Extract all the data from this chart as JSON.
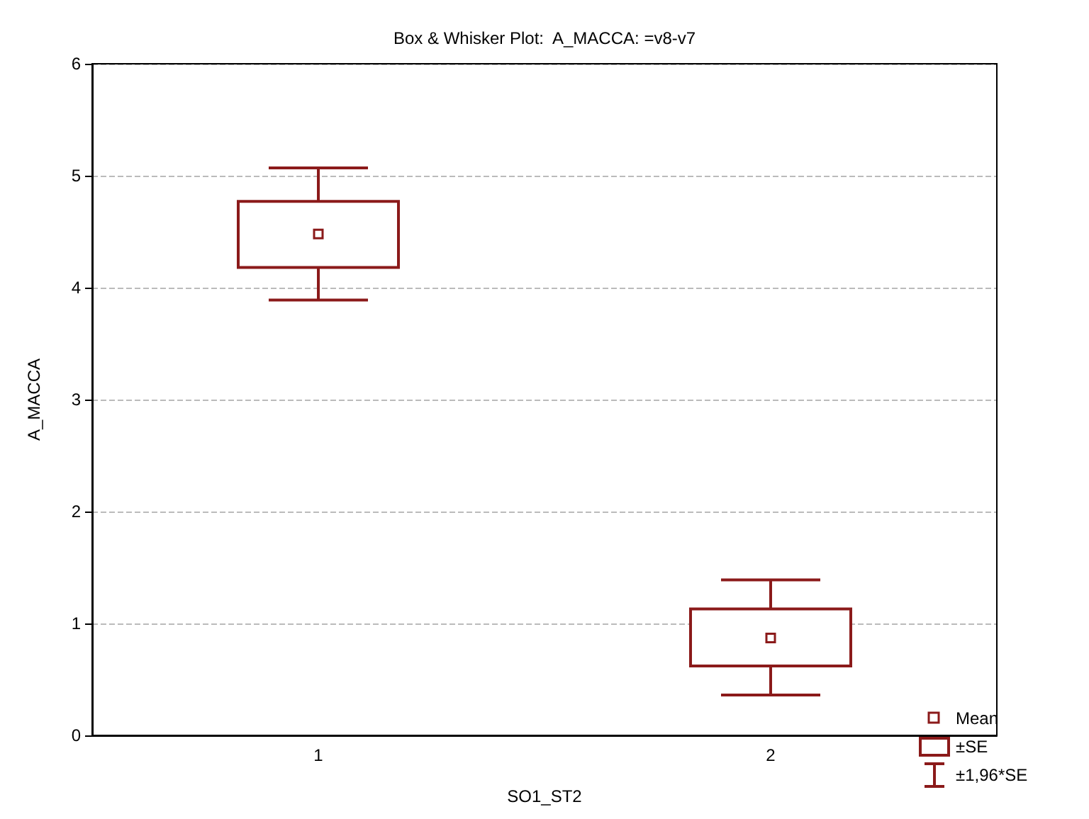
{
  "chart_data": {
    "type": "box",
    "title": "Box & Whisker Plot:  A_MACCA: =v8-v7",
    "xlabel": "SO1_ST2",
    "ylabel": "A_MACCA",
    "categories": [
      "1",
      "2"
    ],
    "color": "#8b1a1a",
    "boxes": [
      {
        "low": 3.89,
        "q1": 4.18,
        "q3": 4.77,
        "high": 5.07,
        "mean": 4.48
      },
      {
        "low": 0.36,
        "q1": 0.62,
        "q3": 1.13,
        "high": 1.39,
        "mean": 0.87
      }
    ],
    "ylim": [
      0,
      6
    ],
    "yticks": [
      0,
      1,
      2,
      3,
      4,
      5,
      6
    ],
    "grid": "y",
    "annotations": [
      "Mean",
      "±SE",
      "±1,96*SE"
    ]
  }
}
